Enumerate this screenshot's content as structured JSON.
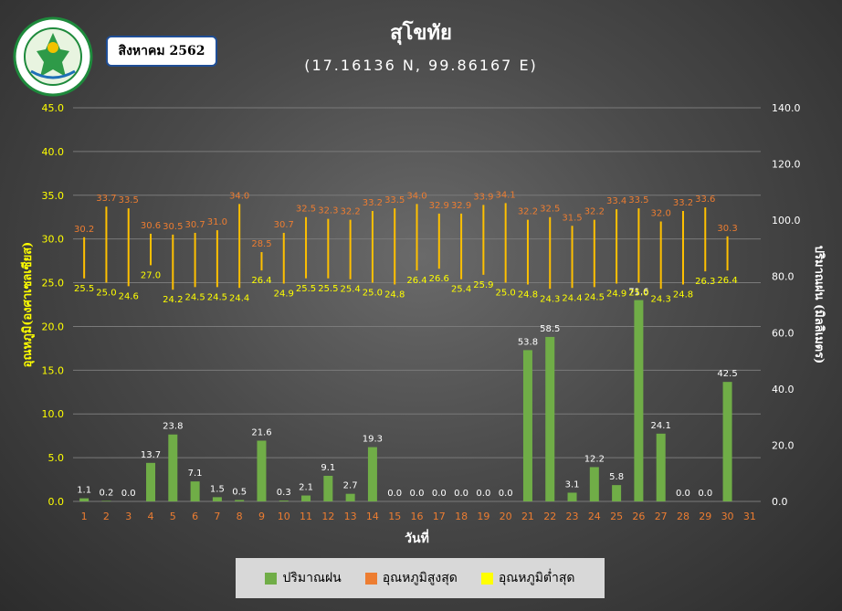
{
  "header": {
    "title": "สุโขทัย",
    "subtitle": "(17.16136 N, 99.86167 E)",
    "month": "สิงหาคม 2562",
    "logo_text": "METEOROLOGICAL DEPARTMENT"
  },
  "colors": {
    "rain": "#70ad47",
    "tmax": "#ed7d31",
    "tmin": "#ffff00",
    "tmin_bar": "#ffc000",
    "left_axis": "#ffff00",
    "right_axis": "#ffffff",
    "x_ticks": "#ed7d31"
  },
  "legend": {
    "items": [
      {
        "label": "ปริมาณฝน",
        "color": "#70ad47"
      },
      {
        "label": "อุณหภูมิสูงสุด",
        "color": "#ed7d31"
      },
      {
        "label": "อุณหภูมิต่ำสุด",
        "color": "#ffff00"
      }
    ]
  },
  "chart_data": {
    "type": "bar",
    "x": [
      1,
      2,
      3,
      4,
      5,
      6,
      7,
      8,
      9,
      10,
      11,
      12,
      13,
      14,
      15,
      16,
      17,
      18,
      19,
      20,
      21,
      22,
      23,
      24,
      25,
      26,
      27,
      28,
      29,
      30,
      31
    ],
    "xlabel": "วันที่",
    "ylabel_left": "อุณหภูมิ(องศาเซลเซียส)",
    "ylabel_right": "ปริมาณฝน (มิลลิเมตร)",
    "ylim_left": [
      0,
      45
    ],
    "yticks_left": [
      "0.0",
      "5.0",
      "10.0",
      "15.0",
      "20.0",
      "25.0",
      "30.0",
      "35.0",
      "40.0",
      "45.0"
    ],
    "ylim_right": [
      0,
      140
    ],
    "yticks_right": [
      "0.0",
      "20.0",
      "40.0",
      "60.0",
      "80.0",
      "100.0",
      "120.0",
      "140.0"
    ],
    "grid": true,
    "legend_position": "bottom",
    "series": [
      {
        "name": "ปริมาณฝน",
        "axis": "right",
        "values": [
          1.1,
          0.2,
          0.0,
          13.7,
          23.8,
          7.1,
          1.5,
          0.5,
          21.6,
          0.3,
          2.1,
          9.1,
          2.7,
          19.3,
          0.0,
          0.0,
          0.0,
          0.0,
          0.0,
          0.0,
          53.8,
          58.5,
          3.1,
          12.2,
          5.8,
          71.6,
          24.1,
          0.0,
          0.0,
          42.5,
          null
        ]
      },
      {
        "name": "อุณหภูมิสูงสุด",
        "axis": "left",
        "values": [
          30.2,
          33.7,
          33.5,
          30.6,
          30.5,
          30.7,
          31.0,
          34.0,
          28.5,
          30.7,
          32.5,
          32.3,
          32.2,
          33.2,
          33.5,
          34.0,
          32.9,
          32.9,
          33.9,
          34.1,
          32.2,
          32.5,
          31.5,
          32.2,
          33.4,
          33.5,
          32.0,
          33.2,
          33.6,
          30.3,
          null
        ]
      },
      {
        "name": "อุณหภูมิต่ำสุด",
        "axis": "left",
        "values": [
          25.5,
          25.0,
          24.6,
          27.0,
          24.2,
          24.5,
          24.5,
          24.4,
          26.4,
          24.9,
          25.5,
          25.5,
          25.4,
          25.0,
          24.8,
          26.4,
          26.6,
          25.4,
          25.9,
          25.0,
          24.8,
          24.3,
          24.4,
          24.5,
          24.9,
          25.0,
          24.3,
          24.8,
          26.3,
          26.4,
          null
        ]
      }
    ]
  }
}
